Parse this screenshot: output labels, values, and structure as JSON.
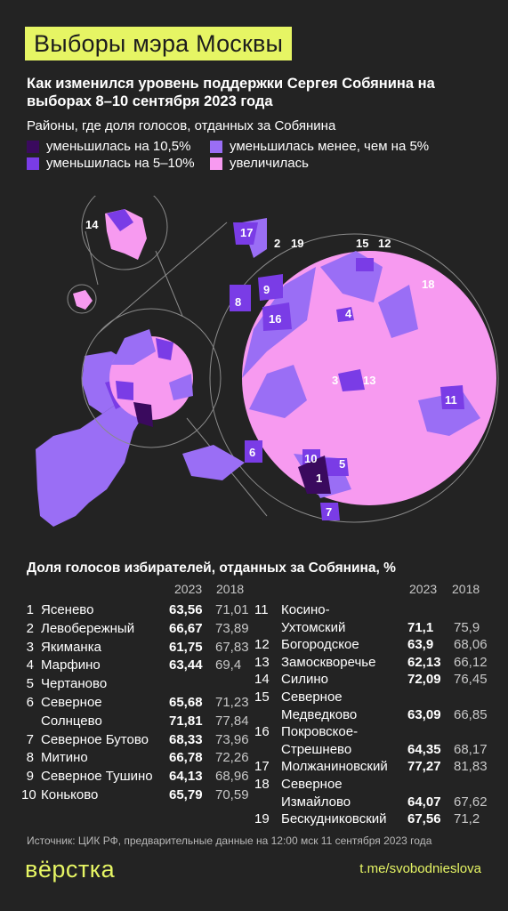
{
  "header": {
    "title": "Выборы мэра Москвы",
    "subtitle": "Как изменился уровень поддержки Сергея Собянина на выборах 8–10 сентября 2023 года"
  },
  "legend": {
    "title": "Районы, где доля голосов, отданных за Собянина",
    "items": [
      {
        "label": "уменьшилась на 10,5%",
        "color": "#3a0a5e"
      },
      {
        "label": "уменьшилась менее, чем на 5%",
        "color": "#9a6ef5"
      },
      {
        "label": "уменьшилась на 5–10%",
        "color": "#7a3ce6"
      },
      {
        "label": "увеличилась",
        "color": "#f79af0"
      }
    ]
  },
  "map": {
    "labels": [
      "1",
      "2",
      "3",
      "4",
      "5",
      "6",
      "7",
      "8",
      "9",
      "10",
      "11",
      "12",
      "13",
      "14",
      "15",
      "16",
      "17",
      "18",
      "19"
    ]
  },
  "table": {
    "title": "Доля голосов избирателей, отданных за Собянина, %",
    "col_2023": "2023",
    "col_2018": "2018",
    "left": [
      {
        "num": "1",
        "lines": [
          "Ясенево"
        ],
        "v2023": "63,56",
        "v2018": "71,01"
      },
      {
        "num": "2",
        "lines": [
          "Левобережный"
        ],
        "v2023": "66,67",
        "v2018": "73,89"
      },
      {
        "num": "3",
        "lines": [
          "Якиманка"
        ],
        "v2023": "61,75",
        "v2018": "67,83"
      },
      {
        "num": "4",
        "lines": [
          "Марфино"
        ],
        "v2023": "63,44",
        "v2018": "69,4"
      },
      {
        "num": "5",
        "lines": [
          "Чертаново"
        ],
        "v2023": "",
        "v2018": ""
      },
      {
        "num": "6",
        "lines": [
          "Северное"
        ],
        "v2023": "65,68",
        "v2018": "71,23"
      },
      {
        "num": "",
        "lines": [
          "Солнцево"
        ],
        "v2023": "71,81",
        "v2018": "77,84"
      },
      {
        "num": "7",
        "lines": [
          "Северное Бутово"
        ],
        "v2023": "68,33",
        "v2018": "73,96"
      },
      {
        "num": "8",
        "lines": [
          "Митино"
        ],
        "v2023": "66,78",
        "v2018": "72,26"
      },
      {
        "num": "9",
        "lines": [
          "Северное Тушино"
        ],
        "v2023": "64,13",
        "v2018": "68,96"
      },
      {
        "num": "10",
        "lines": [
          "Коньково"
        ],
        "v2023": "65,79",
        "v2018": "70,59"
      }
    ],
    "right": [
      {
        "num": "11",
        "lines": [
          "Косино-",
          "Ухтомский"
        ],
        "v2023": "71,1",
        "v2018": "75,9"
      },
      {
        "num": "12",
        "lines": [
          "Богородское"
        ],
        "v2023": "63,9",
        "v2018": "68,06"
      },
      {
        "num": "13",
        "lines": [
          "Замоскворечье"
        ],
        "v2023": "62,13",
        "v2018": "66,12"
      },
      {
        "num": "14",
        "lines": [
          "Силино"
        ],
        "v2023": "72,09",
        "v2018": "76,45"
      },
      {
        "num": "15",
        "lines": [
          "Северное",
          "Медведково"
        ],
        "v2023": "63,09",
        "v2018": "66,85"
      },
      {
        "num": "16",
        "lines": [
          "Покровское-",
          "Стрешнево"
        ],
        "v2023": "64,35",
        "v2018": "68,17"
      },
      {
        "num": "17",
        "lines": [
          "Молжаниновский"
        ],
        "v2023": "77,27",
        "v2018": "81,83"
      },
      {
        "num": "18",
        "lines": [
          "Северное",
          "Измайлово"
        ],
        "v2023": "64,07",
        "v2018": "67,62"
      },
      {
        "num": "19",
        "lines": [
          "Бескудниковский"
        ],
        "v2023": "67,56",
        "v2018": "71,2"
      }
    ]
  },
  "footer": {
    "source": "Источник: ЦИК РФ, предварительные данные на 12:00 мск 11 сентября 2023 года",
    "logo": "вёрстка",
    "channel": "t.me/svobodnieslova"
  }
}
